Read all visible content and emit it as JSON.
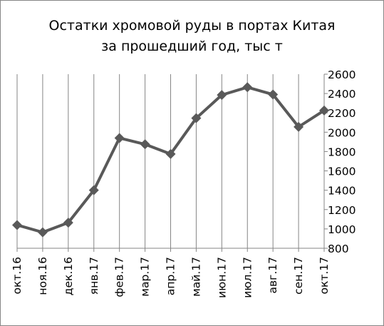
{
  "chart_data": {
    "type": "line",
    "title_lines": [
      "Остатки хромовой руды в портах Китая",
      "за прошедший год, тыс т"
    ],
    "xlabel": "",
    "ylabel": "",
    "categories": [
      "окт.16",
      "ноя.16",
      "дек.16",
      "янв.17",
      "фев.17",
      "мар.17",
      "апр.17",
      "май.17",
      "июн.17",
      "июл.17",
      "авг.17",
      "сен.17",
      "окт.17"
    ],
    "series": [
      {
        "values": [
          1040,
          965,
          1065,
          1400,
          1940,
          1875,
          1775,
          2145,
          2385,
          2465,
          2390,
          2055,
          2225
        ]
      }
    ],
    "ylim": [
      800,
      2600
    ],
    "yticks": [
      800,
      1000,
      1200,
      1400,
      1600,
      1800,
      2000,
      2200,
      2400,
      2600
    ],
    "y_axis_side": "right",
    "grid": {
      "vertical": true,
      "horizontal": false
    },
    "legend": "none",
    "colors": {
      "line": "#595959",
      "marker": "#595959",
      "grid": "#868686",
      "axis": "#868686"
    }
  }
}
